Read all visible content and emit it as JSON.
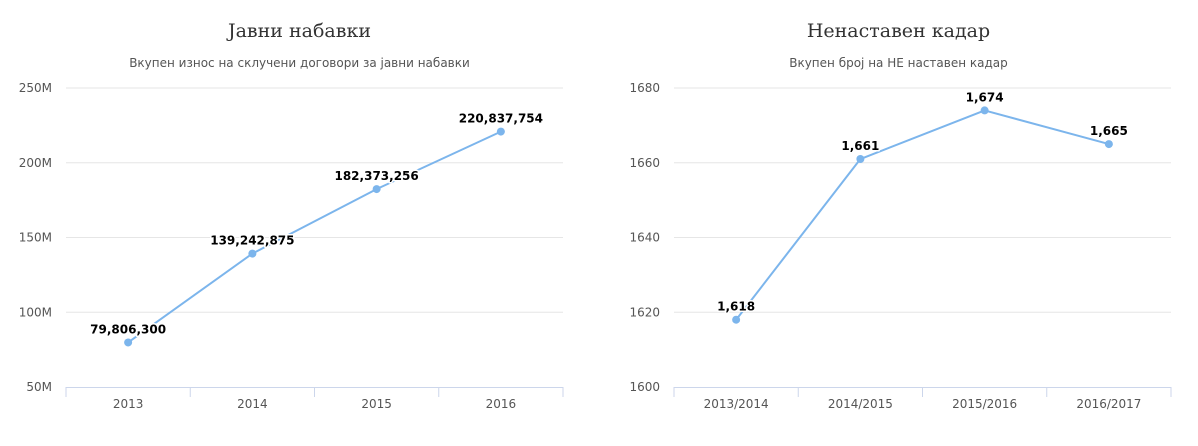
{
  "chart_data": [
    {
      "type": "line",
      "title": "Јавни набавки",
      "subtitle": "Вкупен износ на склучени договори за јавни набавки",
      "xlabel": "",
      "ylabel": "",
      "categories": [
        "2013",
        "2014",
        "2015",
        "2016"
      ],
      "series": [
        {
          "values": [
            79806300,
            139242875,
            182373256,
            220837754
          ]
        }
      ],
      "data_labels": [
        "79,806,300",
        "139,242,875",
        "182,373,256",
        "220,837,754"
      ],
      "ylim": [
        50000000,
        250000000
      ],
      "yticks": [
        50000000,
        100000000,
        150000000,
        200000000,
        250000000
      ],
      "ytick_labels": [
        "50M",
        "100M",
        "150M",
        "200M",
        "250M"
      ],
      "grid": true,
      "legend": "none",
      "color": "#7cb5ec"
    },
    {
      "type": "line",
      "title": "Ненаставен кадар",
      "subtitle": "Вкупен број на НЕ наставен кадар",
      "xlabel": "",
      "ylabel": "",
      "categories": [
        "2013/2014",
        "2014/2015",
        "2015/2016",
        "2016/2017"
      ],
      "series": [
        {
          "values": [
            1618,
            1661,
            1674,
            1665
          ]
        }
      ],
      "data_labels": [
        "1,618",
        "1,661",
        "1,674",
        "1,665"
      ],
      "ylim": [
        1600,
        1680
      ],
      "yticks": [
        1600,
        1620,
        1640,
        1660,
        1680
      ],
      "ytick_labels": [
        "1600",
        "1620",
        "1640",
        "1660",
        "1680"
      ],
      "grid": true,
      "legend": "none",
      "color": "#7cb5ec"
    }
  ]
}
